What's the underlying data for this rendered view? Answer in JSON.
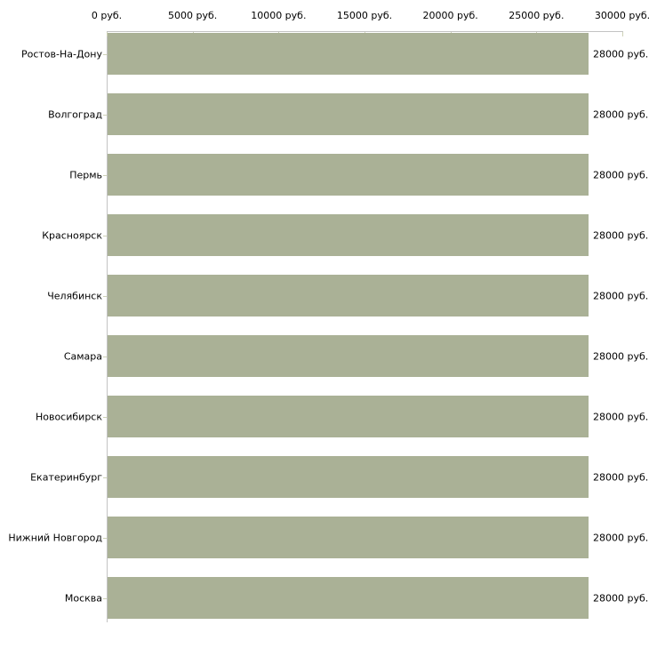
{
  "chart_data": {
    "type": "bar",
    "orientation": "horizontal",
    "title": "",
    "xlabel": "",
    "ylabel": "",
    "xlim": [
      0,
      30000
    ],
    "grid": false,
    "legend": false,
    "x_tick_values": [
      0,
      5000,
      10000,
      15000,
      20000,
      25000,
      30000
    ],
    "x_tick_labels": [
      "0 руб.",
      "5000 руб.",
      "10000 руб.",
      "15000 руб.",
      "20000 руб.",
      "25000 руб.",
      "30000 руб."
    ],
    "categories": [
      "Ростов-На-Дону",
      "Волгоград",
      "Пермь",
      "Красноярск",
      "Челябинск",
      "Самара",
      "Новосибирск",
      "Екатеринбург",
      "Нижний Новгород",
      "Москва"
    ],
    "values": [
      28000,
      28000,
      28000,
      28000,
      28000,
      28000,
      28000,
      28000,
      28000,
      28000
    ],
    "value_labels": [
      "28000 руб.",
      "28000 руб.",
      "28000 руб.",
      "28000 руб.",
      "28000 руб.",
      "28000 руб.",
      "28000 руб.",
      "28000 руб.",
      "28000 руб.",
      "28000 руб."
    ],
    "unit": "руб.",
    "colors": {
      "bar_fill": "#aab196",
      "axis_line": "#c3c3c3",
      "tick_mark": "#cdd1b6",
      "text": "#000000",
      "background": "#ffffff"
    }
  }
}
